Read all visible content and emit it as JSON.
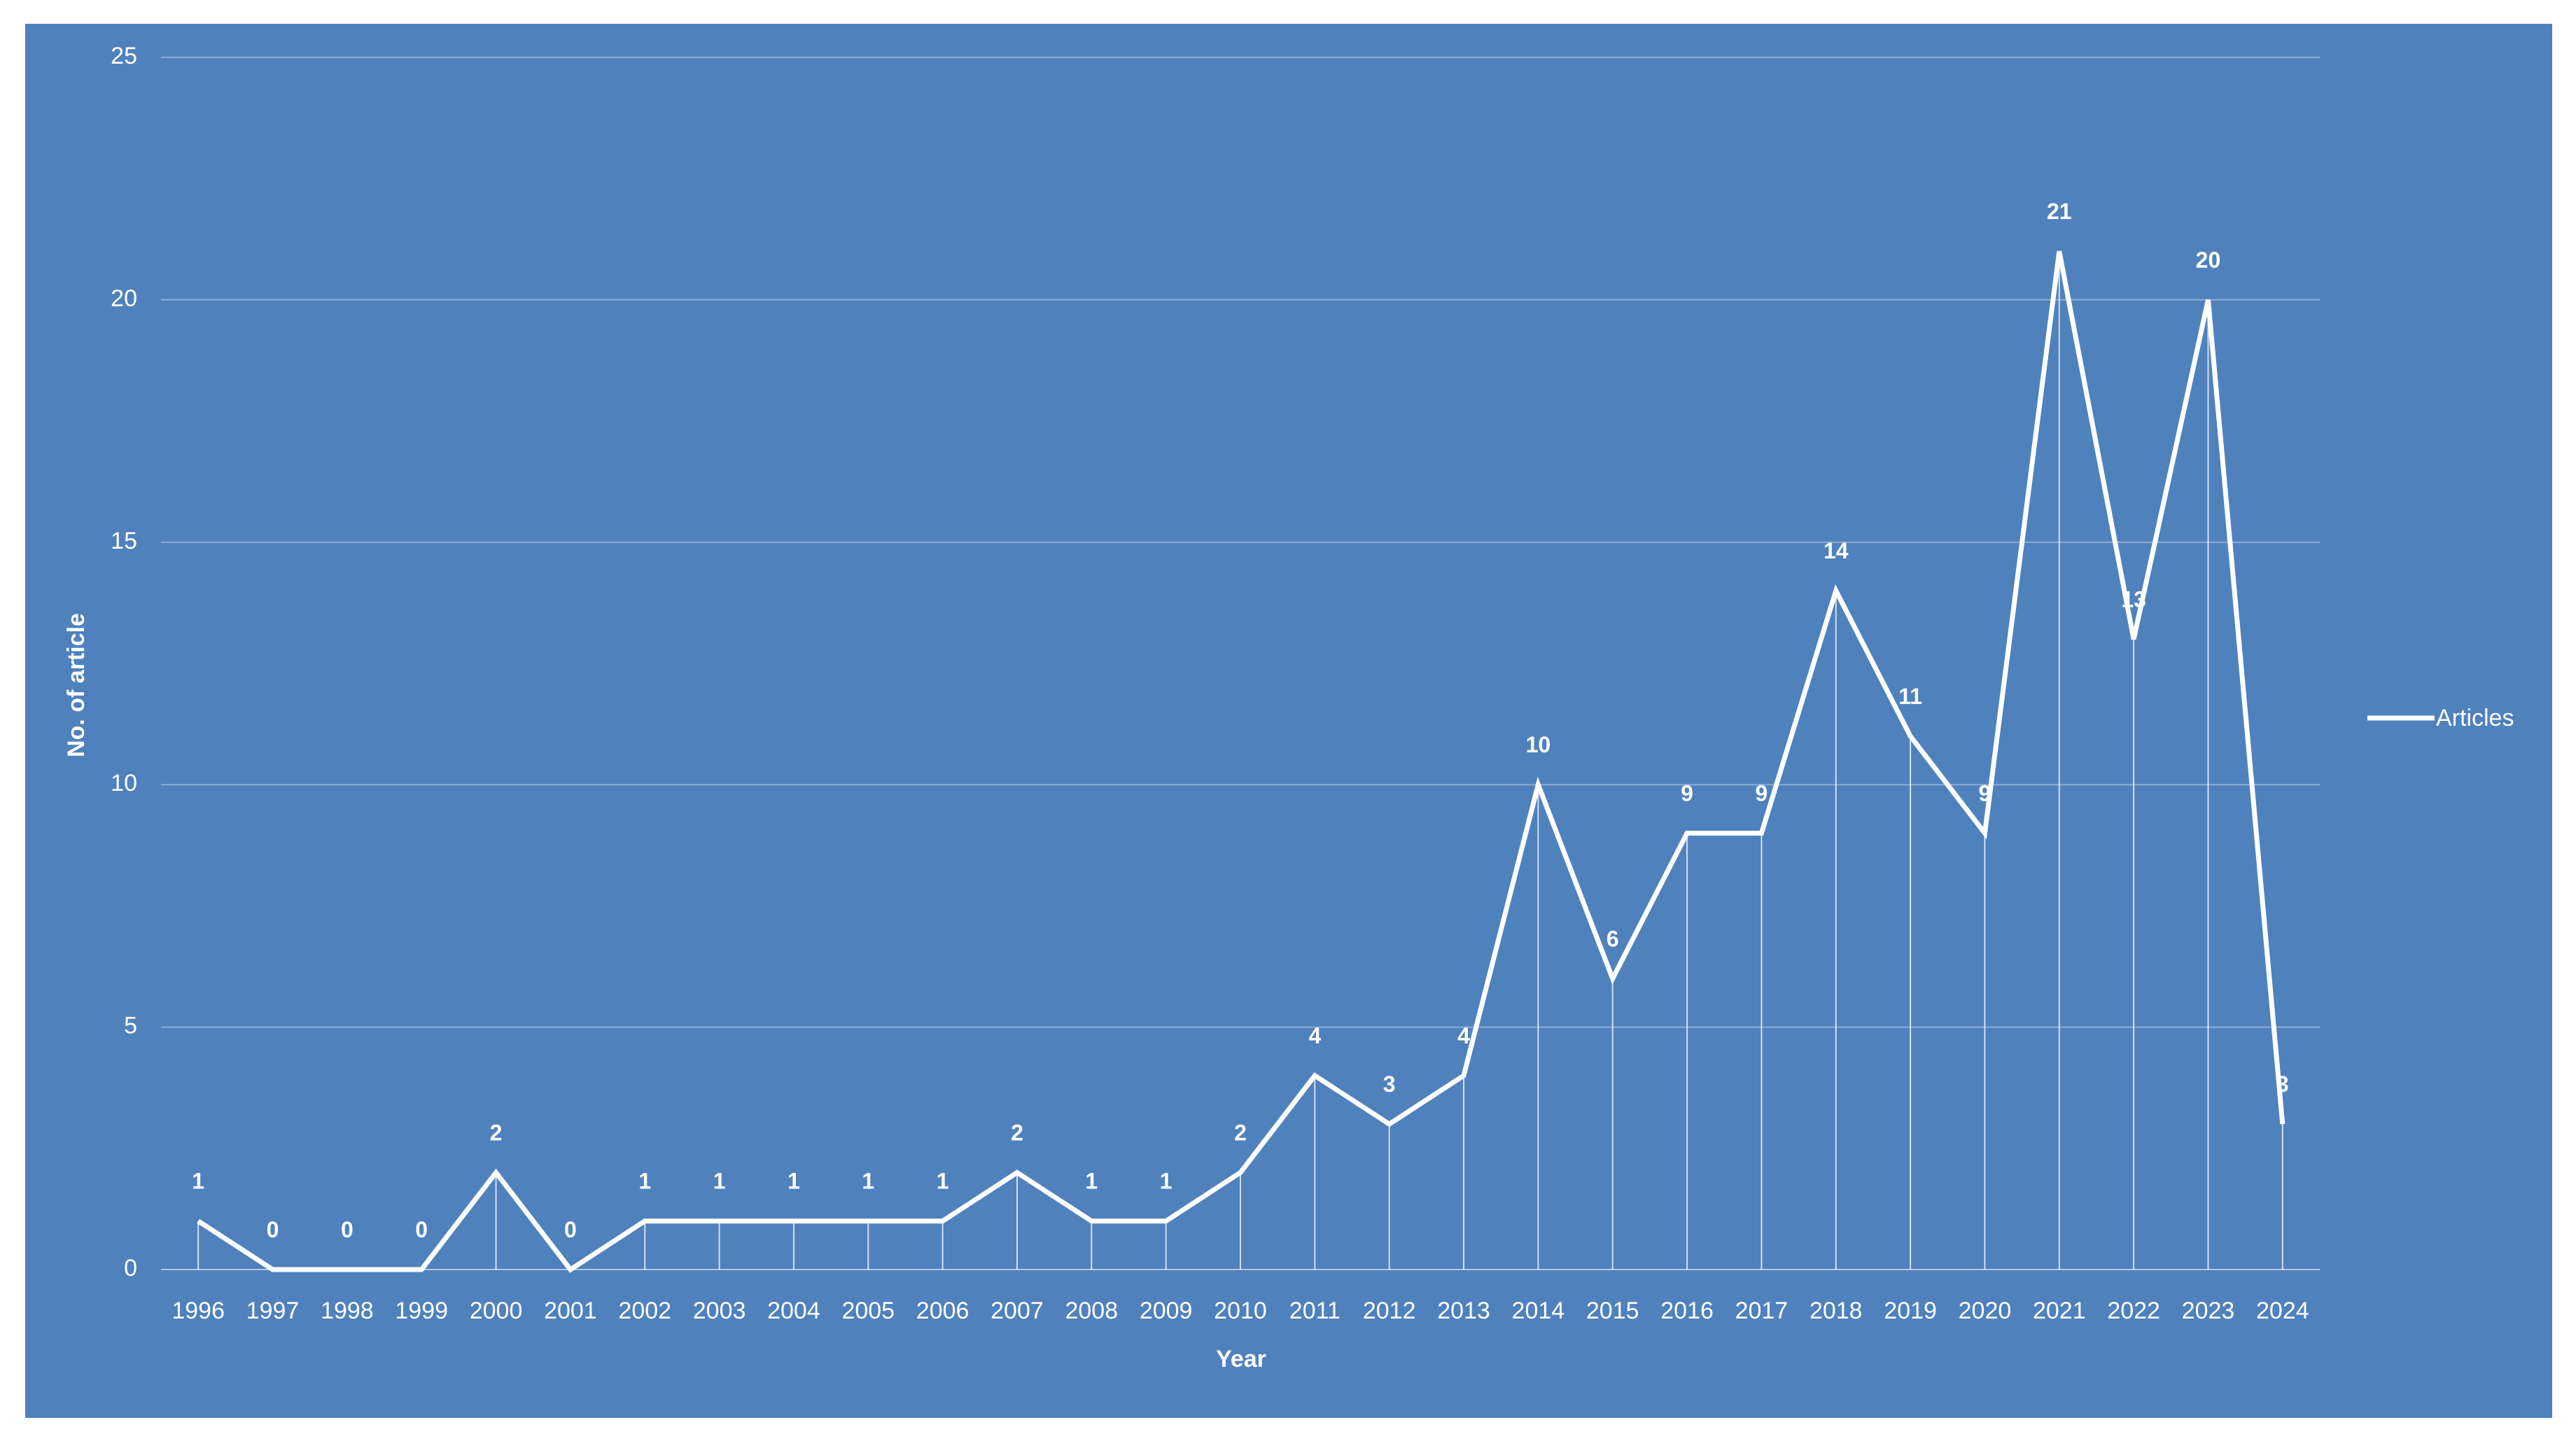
{
  "chart_data": {
    "type": "line",
    "title": "",
    "xlabel": "Year",
    "ylabel": "No. of article",
    "ylim": [
      0,
      25
    ],
    "yticks": [
      "0",
      "5",
      "10",
      "15",
      "20",
      "25"
    ],
    "grid": "horizontal",
    "legend_position": "right",
    "background_color": "#4f81bd",
    "line_color": "#ffffff",
    "categories": [
      "1996",
      "1997",
      "1998",
      "1999",
      "2000",
      "2001",
      "2002",
      "2003",
      "2004",
      "2005",
      "2006",
      "2007",
      "2008",
      "2009",
      "2010",
      "2011",
      "2012",
      "2013",
      "2014",
      "2015",
      "2016",
      "2017",
      "2018",
      "2019",
      "2020",
      "2021",
      "2022",
      "2023",
      "2024"
    ],
    "series": [
      {
        "name": "Articles",
        "values": [
          1,
          0,
          0,
          0,
          2,
          0,
          1,
          1,
          1,
          1,
          1,
          2,
          1,
          1,
          2,
          4,
          3,
          4,
          10,
          6,
          9,
          9,
          14,
          11,
          9,
          21,
          13,
          20,
          3
        ]
      }
    ]
  }
}
